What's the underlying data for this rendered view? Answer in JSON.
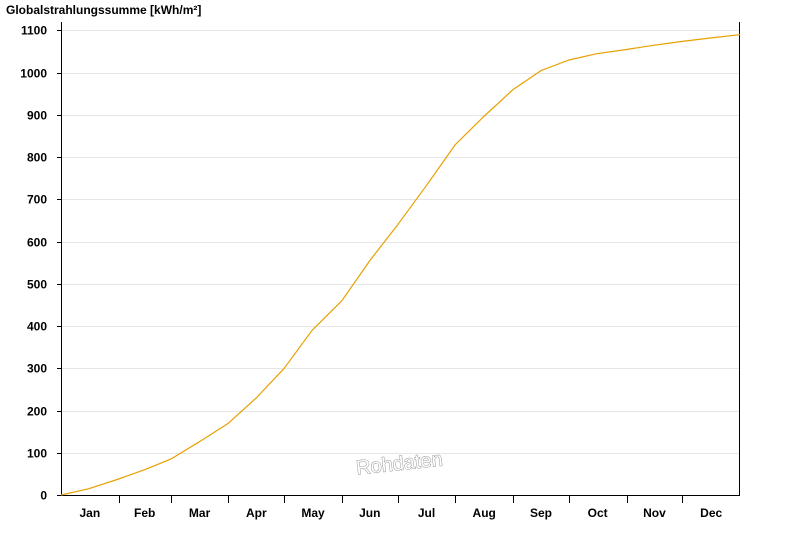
{
  "chart_data": {
    "type": "line",
    "title": "",
    "ylabel": "Globalstrahlungssumme [kWh/m²]",
    "xlabel": "",
    "ylim": [
      0,
      1100
    ],
    "yticks": [
      0,
      100,
      200,
      300,
      400,
      500,
      600,
      700,
      800,
      900,
      1000,
      1100
    ],
    "xlim_days": [
      0,
      365
    ],
    "grid": "horizontal",
    "months": [
      "Jan",
      "Feb",
      "Mar",
      "Apr",
      "May",
      "Jun",
      "Jul",
      "Aug",
      "Sep",
      "Oct",
      "Nov",
      "Dec"
    ],
    "series": [
      {
        "color": "#e8a000",
        "x_day_of_year": [
          0,
          15,
          31,
          45,
          59,
          74,
          90,
          105,
          120,
          135,
          151,
          166,
          181,
          196,
          212,
          227,
          243,
          258,
          273,
          288,
          304,
          319,
          334,
          349,
          365
        ],
        "values": [
          0,
          15,
          38,
          60,
          85,
          125,
          170,
          230,
          300,
          390,
          460,
          555,
          640,
          730,
          830,
          895,
          960,
          1005,
          1030,
          1045,
          1055,
          1065,
          1074,
          1082,
          1090
        ]
      }
    ],
    "watermark": "Rohdaten"
  }
}
